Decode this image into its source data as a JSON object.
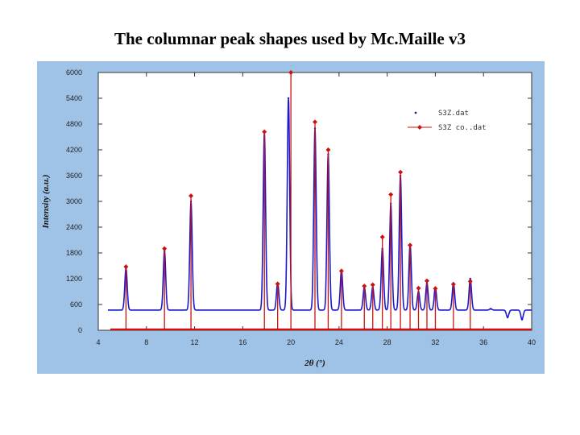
{
  "page": {
    "title": "The columnar peak shapes used by Mc.Maille v3"
  },
  "chart_data": {
    "type": "line",
    "xlabel": "2θ (°)",
    "ylabel": "Intensity (a.u.)",
    "xlim": [
      4,
      40
    ],
    "ylim": [
      0,
      6000
    ],
    "xticks": [
      "4",
      "8",
      "12",
      "16",
      "20",
      "24",
      "28",
      "32",
      "36",
      "40"
    ],
    "yticks": [
      "0",
      "600",
      "1200",
      "1800",
      "2400",
      "3000",
      "3600",
      "4200",
      "4800",
      "5400",
      "6000"
    ],
    "legend_position": "top-right",
    "grid": false,
    "series": [
      {
        "name": "S3Z.dat",
        "color": "#1a1acc",
        "marker": "dot",
        "baseline": 470,
        "peaks": [
          [
            6.3,
            1450
          ],
          [
            9.5,
            1850
          ],
          [
            11.7,
            3000
          ],
          [
            17.8,
            4600
          ],
          [
            18.9,
            1100
          ],
          [
            19.8,
            5400
          ],
          [
            22.0,
            4700
          ],
          [
            23.1,
            4100
          ],
          [
            24.2,
            1400
          ],
          [
            26.1,
            1000
          ],
          [
            26.8,
            1000
          ],
          [
            27.6,
            1900
          ],
          [
            28.3,
            2950
          ],
          [
            29.1,
            3600
          ],
          [
            29.9,
            2000
          ],
          [
            30.6,
            900
          ],
          [
            31.3,
            1100
          ],
          [
            32.0,
            1000
          ],
          [
            33.5,
            1100
          ],
          [
            34.9,
            1200
          ],
          [
            36.6,
            500
          ],
          [
            38.0,
            300
          ],
          [
            39.2,
            250
          ]
        ]
      },
      {
        "name": "S3Z co..dat",
        "color": "#cc1111",
        "marker": "diamond",
        "sticks": [
          [
            6.3,
            1480
          ],
          [
            9.5,
            1900
          ],
          [
            11.7,
            3130
          ],
          [
            17.8,
            4620
          ],
          [
            18.9,
            1080
          ],
          [
            20.0,
            6000
          ],
          [
            22.0,
            4850
          ],
          [
            23.1,
            4200
          ],
          [
            24.2,
            1380
          ],
          [
            26.1,
            1030
          ],
          [
            26.8,
            1060
          ],
          [
            27.6,
            2170
          ],
          [
            28.3,
            3160
          ],
          [
            29.1,
            3680
          ],
          [
            29.9,
            1980
          ],
          [
            30.6,
            980
          ],
          [
            31.3,
            1150
          ],
          [
            32.0,
            970
          ],
          [
            33.5,
            1070
          ],
          [
            34.9,
            1140
          ]
        ]
      }
    ]
  }
}
